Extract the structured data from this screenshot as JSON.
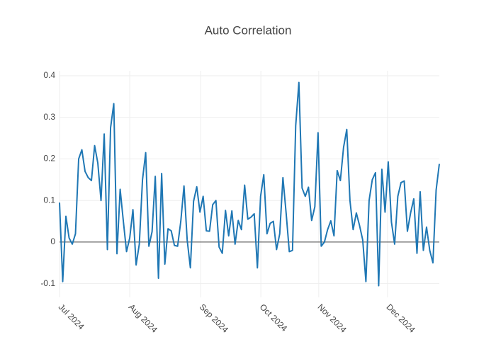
{
  "chart_data": {
    "type": "line",
    "title": "Auto Correlation",
    "color": "#1f77b4",
    "grid": true,
    "values": [
      0.095,
      -0.095,
      0.062,
      0.01,
      -0.005,
      0.02,
      0.2,
      0.222,
      0.17,
      0.155,
      0.148,
      0.232,
      0.19,
      0.1,
      0.26,
      -0.018,
      0.275,
      0.333,
      -0.028,
      0.127,
      0.05,
      -0.023,
      0.01,
      0.078,
      -0.055,
      -0.005,
      0.15,
      0.215,
      -0.01,
      0.025,
      0.158,
      -0.087,
      0.165,
      -0.053,
      0.032,
      0.027,
      -0.008,
      -0.01,
      0.05,
      0.135,
      0.005,
      -0.062,
      0.098,
      0.133,
      0.072,
      0.11,
      0.027,
      0.026,
      0.09,
      0.1,
      -0.012,
      -0.027,
      0.076,
      0.015,
      0.075,
      -0.005,
      0.052,
      0.03,
      0.137,
      0.055,
      0.06,
      0.068,
      -0.062,
      0.11,
      0.162,
      0.02,
      0.045,
      0.05,
      -0.018,
      0.02,
      0.155,
      0.07,
      -0.023,
      -0.02,
      0.28,
      0.384,
      0.13,
      0.11,
      0.132,
      0.052,
      0.085,
      0.263,
      -0.01,
      0.0,
      0.03,
      0.051,
      0.015,
      0.172,
      0.148,
      0.228,
      0.271,
      0.1,
      0.03,
      0.07,
      0.04,
      0.005,
      -0.095,
      0.1,
      0.15,
      0.167,
      -0.105,
      0.175,
      0.072,
      0.193,
      0.048,
      -0.005,
      0.11,
      0.143,
      0.147,
      0.026,
      0.07,
      0.104,
      -0.027,
      0.121,
      -0.02,
      0.036,
      -0.02,
      -0.05,
      0.125,
      0.188
    ],
    "xlim": [
      0,
      126
    ],
    "xticks": [
      {
        "value": 0,
        "label": "Jul 2024"
      },
      {
        "value": 23.3,
        "label": "Aug 2024"
      },
      {
        "value": 46.8,
        "label": "Sep 2024"
      },
      {
        "value": 66.8,
        "label": "Oct 2024"
      },
      {
        "value": 86,
        "label": "Nov 2024"
      },
      {
        "value": 108.8,
        "label": "Dec 2024"
      }
    ],
    "ylim": [
      -0.133,
      0.412
    ],
    "yticks": [
      -0.1,
      0,
      0.1,
      0.2,
      0.3,
      0.4
    ]
  }
}
